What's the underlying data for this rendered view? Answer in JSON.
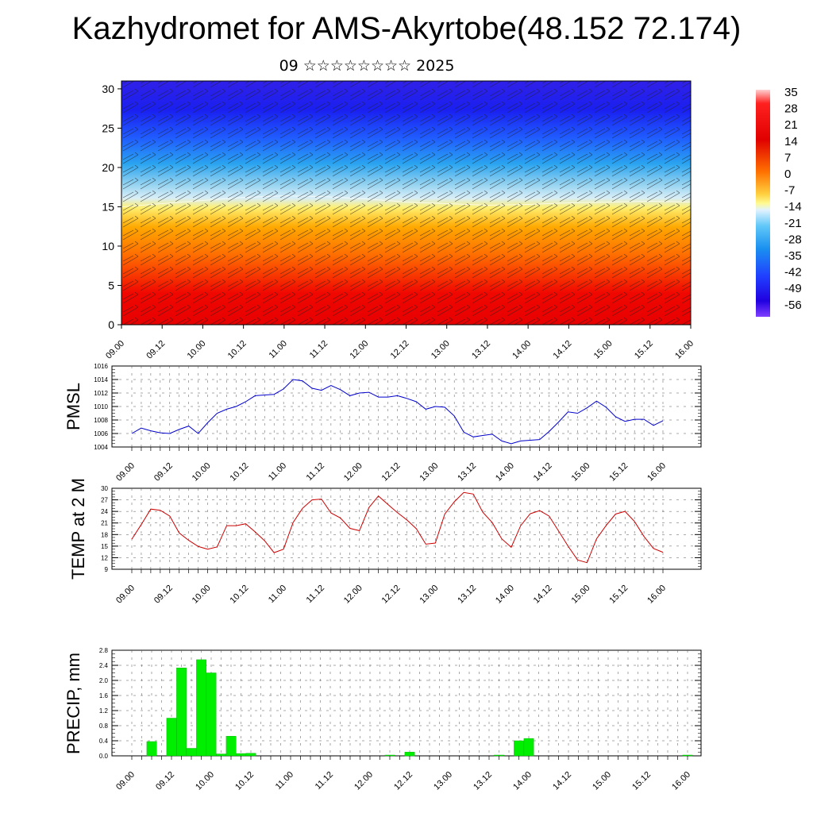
{
  "title": "Kazhydromet for AMS-Akyrtobe(48.152 72.174)",
  "subtitle": "09 ☆☆☆☆☆☆☆☆ 2025",
  "colors": {
    "pmsl_line": "#0000cc",
    "temp_line": "#cc0000",
    "precip_bar": "#00ee00",
    "precip_bar_edge": "#00aa00",
    "grid": "#666666"
  },
  "chart_data": [
    {
      "type": "heatmap",
      "description_key": "cross-section",
      "x_tick_labels": [
        "09.00",
        "09.12",
        "10.00",
        "10.12",
        "11.00",
        "11.12",
        "12.00",
        "12.12",
        "13.00",
        "13.12",
        "14.00",
        "14.12",
        "15.00",
        "15.12",
        "16.00"
      ],
      "y_ticks": [
        0,
        5,
        10,
        15,
        20,
        25,
        30
      ],
      "ylim": [
        0,
        31
      ],
      "colorbar_labels": [
        "35",
        "28",
        "21",
        "14",
        "7",
        "0",
        "-7",
        "-14",
        "-21",
        "-28",
        "-35",
        "-42",
        "-49",
        "-56"
      ],
      "colorbar_range": [
        -63,
        42
      ],
      "freezing_level_km": [
        15,
        15.4,
        15.8,
        16.2,
        16.4,
        16.3,
        16,
        15.6,
        15.4,
        15.2,
        15.3,
        15.5,
        15.6,
        15.7,
        15.6
      ]
    },
    {
      "type": "line",
      "ylabel": "PMSL",
      "y_ticks": [
        1004,
        1006,
        1008,
        1010,
        1012,
        1014,
        1016
      ],
      "ylim": [
        1004,
        1016
      ],
      "x_tick_labels": [
        "09.00",
        "09.12",
        "10.00",
        "10.12",
        "11.00",
        "11.12",
        "12.00",
        "12.12",
        "13.00",
        "13.12",
        "14.00",
        "14.12",
        "15.00",
        "15.12",
        "16.00"
      ],
      "values": [
        1006,
        1006.8,
        1006.4,
        1006.1,
        1006,
        1006.6,
        1007.1,
        1006,
        1007.6,
        1009,
        1009.6,
        1010,
        1010.7,
        1011.6,
        1011.7,
        1011.8,
        1012.6,
        1014,
        1013.8,
        1012.7,
        1012.4,
        1013.1,
        1012.5,
        1011.6,
        1012,
        1012.1,
        1011.4,
        1011.4,
        1011.6,
        1011.2,
        1010.7,
        1009.6,
        1010,
        1009.9,
        1008.6,
        1006.2,
        1005.5,
        1005.7,
        1005.9,
        1004.9,
        1004.5,
        1004.9,
        1005,
        1005.1,
        1006.3,
        1007.7,
        1009.2,
        1009,
        1009.8,
        1010.8,
        1009.9,
        1008.5,
        1007.8,
        1008.1,
        1008.1,
        1007.2,
        1007.9
      ]
    },
    {
      "type": "line",
      "ylabel": "TEMP at 2 M",
      "y_ticks": [
        9,
        12,
        15,
        18,
        21,
        24,
        27,
        30
      ],
      "ylim": [
        9,
        30
      ],
      "x_tick_labels": [
        "09.00",
        "09.12",
        "10.00",
        "10.12",
        "11.00",
        "11.12",
        "12.00",
        "12.12",
        "13.00",
        "13.12",
        "14.00",
        "14.12",
        "15.00",
        "15.12",
        "16.00"
      ],
      "values": [
        16.8,
        20.6,
        24.6,
        24.3,
        22.8,
        18.4,
        16.5,
        14.9,
        14.2,
        14.8,
        20.3,
        20.3,
        20.8,
        18.7,
        16.4,
        13.3,
        14.2,
        21.1,
        24.8,
        27,
        27.2,
        23.6,
        22.3,
        19.6,
        19,
        25,
        28,
        25.8,
        23.7,
        21.8,
        19.5,
        15.5,
        15.8,
        23.3,
        26.5,
        28.9,
        28.5,
        23.8,
        21.1,
        16.9,
        14.7,
        20.3,
        23.4,
        24.2,
        22.8,
        18.9,
        15,
        11.4,
        10.7,
        16.9,
        20.3,
        23.3,
        24,
        21.4,
        17.5,
        14.4,
        13.4
      ]
    },
    {
      "type": "bar",
      "ylabel": "PRECIP, mm",
      "y_ticks": [
        "0.0",
        "0.4",
        "0.8",
        "1.2",
        "1.6",
        "2.0",
        "2.4",
        "2.8"
      ],
      "ylim": [
        0,
        2.8
      ],
      "x_tick_labels": [
        "09.00",
        "09.12",
        "10.00",
        "10.12",
        "11.00",
        "11.12",
        "12.00",
        "12.12",
        "13.00",
        "13.12",
        "14.00",
        "14.12",
        "15.00",
        "15.12",
        "16.00"
      ],
      "values": [
        0,
        0,
        0.38,
        0,
        1,
        2.33,
        0.2,
        2.55,
        2.2,
        0.05,
        0.52,
        0.06,
        0.07,
        0,
        0,
        0,
        0,
        0,
        0,
        0,
        0,
        0,
        0,
        0,
        0,
        0,
        0.02,
        0,
        0.1,
        0,
        0,
        0,
        0,
        0,
        0,
        0,
        0,
        0.02,
        0,
        0.4,
        0.46,
        0,
        0,
        0,
        0,
        0,
        0,
        0,
        0,
        0,
        0,
        0,
        0,
        0,
        0,
        0,
        0.02
      ]
    }
  ]
}
